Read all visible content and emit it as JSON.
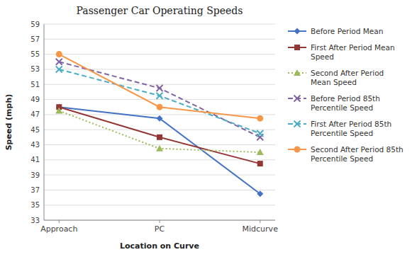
{
  "chart_data": {
    "type": "line",
    "title": "Passenger Car Operating Speeds",
    "xlabel": "Location on Curve",
    "ylabel": "Speed (mph)",
    "categories": [
      "Approach",
      "PC",
      "Midcurve"
    ],
    "ylim": [
      33,
      59
    ],
    "yticks": [
      33,
      35,
      37,
      39,
      41,
      43,
      45,
      47,
      49,
      51,
      53,
      55,
      57,
      59
    ],
    "grid": true,
    "legend": "right",
    "series": [
      {
        "name": "Before Period Mean",
        "color": "#4472C4",
        "line_style": "solid",
        "marker": "diamond",
        "values": [
          48,
          46.5,
          36.5
        ]
      },
      {
        "name": "First After Period Mean\nSpeed",
        "color": "#943634",
        "line_style": "solid",
        "marker": "square",
        "values": [
          48,
          44,
          40.5
        ]
      },
      {
        "name": "Second After Period\nMean Speed",
        "color": "#9BBB59",
        "line_style": "dotted",
        "marker": "triangle",
        "values": [
          47.5,
          42.5,
          42
        ]
      },
      {
        "name": "Before Period 85th\nPercentile Speed",
        "color": "#8064A2",
        "line_style": "dashed",
        "marker": "x",
        "values": [
          54,
          50.5,
          44
        ]
      },
      {
        "name": "First After Period 85th\nPercentile Speed",
        "color": "#4BACC6",
        "line_style": "dashed",
        "marker": "x",
        "values": [
          53,
          49.5,
          44.5
        ]
      },
      {
        "name": "Second After Period 85th\nPercentile Speed",
        "color": "#F79646",
        "line_style": "solid",
        "marker": "circle",
        "values": [
          55,
          48,
          46.5
        ]
      }
    ]
  }
}
